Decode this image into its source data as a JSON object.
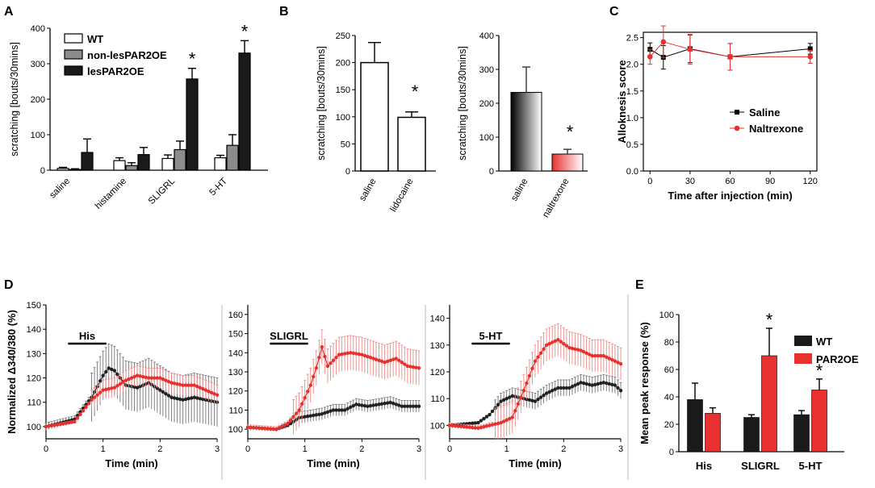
{
  "panels": {
    "A": "A",
    "B": "B",
    "C": "C",
    "D": "D",
    "E": "E"
  },
  "colors": {
    "black": "#1a1a1a",
    "grey": "#8c8c8c",
    "red": "#e8302e",
    "redLight": "#f08a86"
  },
  "chart_data": [
    {
      "id": "A",
      "type": "bar",
      "ylabel": "scratching [bouts/30mins]",
      "ylim": [
        0,
        400
      ],
      "yticks": [
        0,
        100,
        200,
        300,
        400
      ],
      "categories": [
        "saline",
        "histamine",
        "SLIGRL",
        "5-HT"
      ],
      "legend": [
        "WT",
        "non-lesPAR2OE",
        "lesPAR2OE"
      ],
      "series": [
        {
          "name": "WT",
          "values": [
            5,
            27,
            33,
            35
          ],
          "errors": [
            3,
            8,
            10,
            7
          ]
        },
        {
          "name": "non-lesPAR2OE",
          "values": [
            2,
            13,
            58,
            70
          ],
          "errors": [
            2,
            8,
            24,
            30
          ]
        },
        {
          "name": "lesPAR2OE",
          "values": [
            50,
            44,
            257,
            330
          ],
          "errors": [
            38,
            20,
            30,
            35
          ]
        }
      ],
      "annotations": [
        "*",
        "*"
      ]
    },
    {
      "id": "B1",
      "type": "bar",
      "ylabel": "scratching [bouts/30mins]",
      "ylim": [
        0,
        250
      ],
      "yticks": [
        0,
        50,
        100,
        150,
        200,
        250
      ],
      "categories": [
        "saline",
        "lidocaine"
      ],
      "values": [
        200,
        99
      ],
      "errors": [
        37,
        10
      ],
      "annotations": [
        "*"
      ]
    },
    {
      "id": "B2",
      "type": "bar",
      "ylabel": "scratching [bouts/30mins]",
      "ylim": [
        0,
        400
      ],
      "yticks": [
        0,
        100,
        200,
        300,
        400
      ],
      "categories": [
        "saline",
        "naltrexone"
      ],
      "values": [
        232,
        50
      ],
      "errors": [
        75,
        14
      ],
      "annotations": [
        "*"
      ]
    },
    {
      "id": "C",
      "type": "line",
      "xlabel": "Time after injection (min)",
      "ylabel": "Alloknesis score",
      "xlim": [
        -5,
        125
      ],
      "xticks": [
        0,
        30,
        60,
        90,
        120
      ],
      "ylim": [
        0,
        2.6
      ],
      "yticks": [
        0.0,
        0.5,
        1.0,
        1.5,
        2.0,
        2.5
      ],
      "x": [
        0,
        10,
        30,
        60,
        120
      ],
      "series": [
        {
          "name": "Saline",
          "values": [
            2.28,
            2.13,
            2.29,
            2.14,
            2.29
          ],
          "errors": [
            0.12,
            0.22,
            0.26,
            0.25,
            0.1
          ]
        },
        {
          "name": "Naltrexone",
          "values": [
            2.14,
            2.42,
            2.28,
            2.14,
            2.14
          ],
          "errors": [
            0.14,
            0.3,
            0.28,
            0.25,
            0.12
          ]
        }
      ]
    },
    {
      "id": "D",
      "type": "line",
      "ylabel": "Normalized Δ340/380 (%)",
      "xlabel": "Time (min)",
      "xlim": [
        0,
        3
      ],
      "xticks": [
        0,
        1,
        2,
        3
      ],
      "panels": [
        {
          "stimulus": "His",
          "ylim": [
            95,
            150
          ],
          "yticks": [
            100,
            110,
            120,
            130,
            140,
            150
          ],
          "bar": [
            0.5,
            1.0
          ],
          "black": [
            [
              0,
              100
            ],
            [
              0.5,
              103
            ],
            [
              0.8,
              112
            ],
            [
              1.0,
              121
            ],
            [
              1.1,
              124
            ],
            [
              1.2,
              123
            ],
            [
              1.4,
              117
            ],
            [
              1.6,
              116
            ],
            [
              1.8,
              118
            ],
            [
              2.0,
              115
            ],
            [
              2.2,
              112
            ],
            [
              2.4,
              111
            ],
            [
              2.6,
              112
            ],
            [
              2.8,
              111
            ],
            [
              3.0,
              110
            ]
          ],
          "red": [
            [
              0,
              100
            ],
            [
              0.5,
              102
            ],
            [
              0.8,
              111
            ],
            [
              1.0,
              115
            ],
            [
              1.2,
              116
            ],
            [
              1.4,
              119
            ],
            [
              1.6,
              121
            ],
            [
              1.8,
              120
            ],
            [
              2.0,
              120
            ],
            [
              2.2,
              118
            ],
            [
              2.4,
              117
            ],
            [
              2.6,
              117
            ],
            [
              2.8,
              115
            ],
            [
              3.0,
              113
            ]
          ],
          "black_err": 10,
          "red_err": 4
        },
        {
          "stimulus": "SLIGRL",
          "ylim": [
            95,
            165
          ],
          "yticks": [
            100,
            110,
            120,
            130,
            140,
            150,
            160
          ],
          "bar": [
            0.5,
            1.0
          ],
          "black": [
            [
              0,
              101
            ],
            [
              0.5,
              100
            ],
            [
              0.7,
              102
            ],
            [
              0.9,
              106
            ],
            [
              1.1,
              107
            ],
            [
              1.3,
              108
            ],
            [
              1.5,
              110
            ],
            [
              1.7,
              110
            ],
            [
              1.9,
              113
            ],
            [
              2.1,
              112
            ],
            [
              2.3,
              113
            ],
            [
              2.5,
              114
            ],
            [
              2.7,
              112
            ],
            [
              2.9,
              112
            ],
            [
              3.0,
              112
            ]
          ],
          "red": [
            [
              0,
              101
            ],
            [
              0.5,
              100
            ],
            [
              0.7,
              103
            ],
            [
              0.9,
              110
            ],
            [
              1.1,
              123
            ],
            [
              1.2,
              132
            ],
            [
              1.3,
              143
            ],
            [
              1.4,
              133
            ],
            [
              1.6,
              139
            ],
            [
              1.8,
              140
            ],
            [
              2.0,
              139
            ],
            [
              2.2,
              137
            ],
            [
              2.4,
              135
            ],
            [
              2.6,
              137
            ],
            [
              2.8,
              133
            ],
            [
              3.0,
              132
            ]
          ],
          "black_err": 3,
          "red_err": 9
        },
        {
          "stimulus": "5-HT",
          "ylim": [
            95,
            145
          ],
          "yticks": [
            100,
            110,
            120,
            130,
            140
          ],
          "bar": [
            0.5,
            1.0
          ],
          "black": [
            [
              0,
              100
            ],
            [
              0.5,
              101
            ],
            [
              0.7,
              104
            ],
            [
              0.9,
              109
            ],
            [
              1.1,
              111
            ],
            [
              1.3,
              110
            ],
            [
              1.5,
              109
            ],
            [
              1.7,
              112
            ],
            [
              1.9,
              114
            ],
            [
              2.1,
              114
            ],
            [
              2.3,
              116
            ],
            [
              2.5,
              115
            ],
            [
              2.7,
              116
            ],
            [
              2.9,
              115
            ],
            [
              3.0,
              113
            ]
          ],
          "red": [
            [
              0,
              100
            ],
            [
              0.5,
              99
            ],
            [
              0.7,
              100
            ],
            [
              0.9,
              101
            ],
            [
              1.1,
              103
            ],
            [
              1.3,
              113
            ],
            [
              1.5,
              124
            ],
            [
              1.7,
              130
            ],
            [
              1.9,
              132
            ],
            [
              2.1,
              129
            ],
            [
              2.3,
              128
            ],
            [
              2.5,
              126
            ],
            [
              2.7,
              126
            ],
            [
              2.9,
              124
            ],
            [
              3.0,
              123
            ]
          ],
          "black_err": 3,
          "red_err": 6
        }
      ]
    },
    {
      "id": "E",
      "type": "bar",
      "ylabel": "Mean peak response (%)",
      "ylim": [
        0,
        100
      ],
      "yticks": [
        0,
        20,
        40,
        60,
        80,
        100
      ],
      "categories": [
        "His",
        "SLIGRL",
        "5-HT"
      ],
      "legend": [
        "WT",
        "PAR2OE"
      ],
      "series": [
        {
          "name": "WT",
          "values": [
            38,
            25,
            27
          ],
          "errors": [
            12,
            2,
            3
          ]
        },
        {
          "name": "PAR2OE",
          "values": [
            28,
            70,
            45
          ],
          "errors": [
            4,
            20,
            8
          ]
        }
      ],
      "annotations": [
        "*",
        "*"
      ]
    }
  ]
}
